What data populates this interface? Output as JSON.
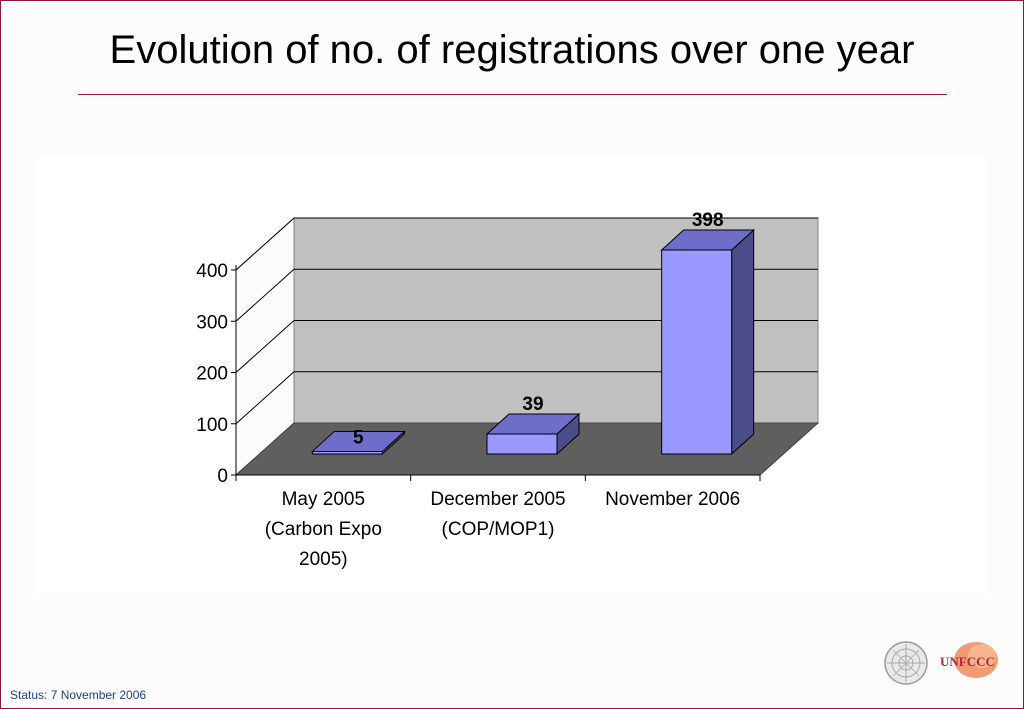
{
  "slide": {
    "title": "Evolution of no. of registrations over one year",
    "status": "Status: 7 November 2006",
    "logo_text": "UNFCCC"
  },
  "colors": {
    "bar_front": "#9999ff",
    "bar_side": "#4c4c8a",
    "bar_top": "#6e6ec8",
    "wall": "#c0c0c0",
    "floor": "#5f5f5f",
    "frame": "#8b1a3a"
  },
  "chart_data": {
    "type": "bar",
    "title": "",
    "xlabel": "",
    "ylabel": "",
    "categories": [
      [
        "May 2005",
        "(Carbon Expo",
        "2005)"
      ],
      [
        "December 2005",
        "(COP/MOP1)"
      ],
      [
        "November 2006"
      ]
    ],
    "values": [
      5,
      39,
      398
    ],
    "data_labels": [
      "5",
      "39",
      "398"
    ],
    "ylim": [
      0,
      400
    ],
    "yticks": [
      0,
      100,
      200,
      300,
      400
    ],
    "grid": true,
    "style": "3d"
  }
}
